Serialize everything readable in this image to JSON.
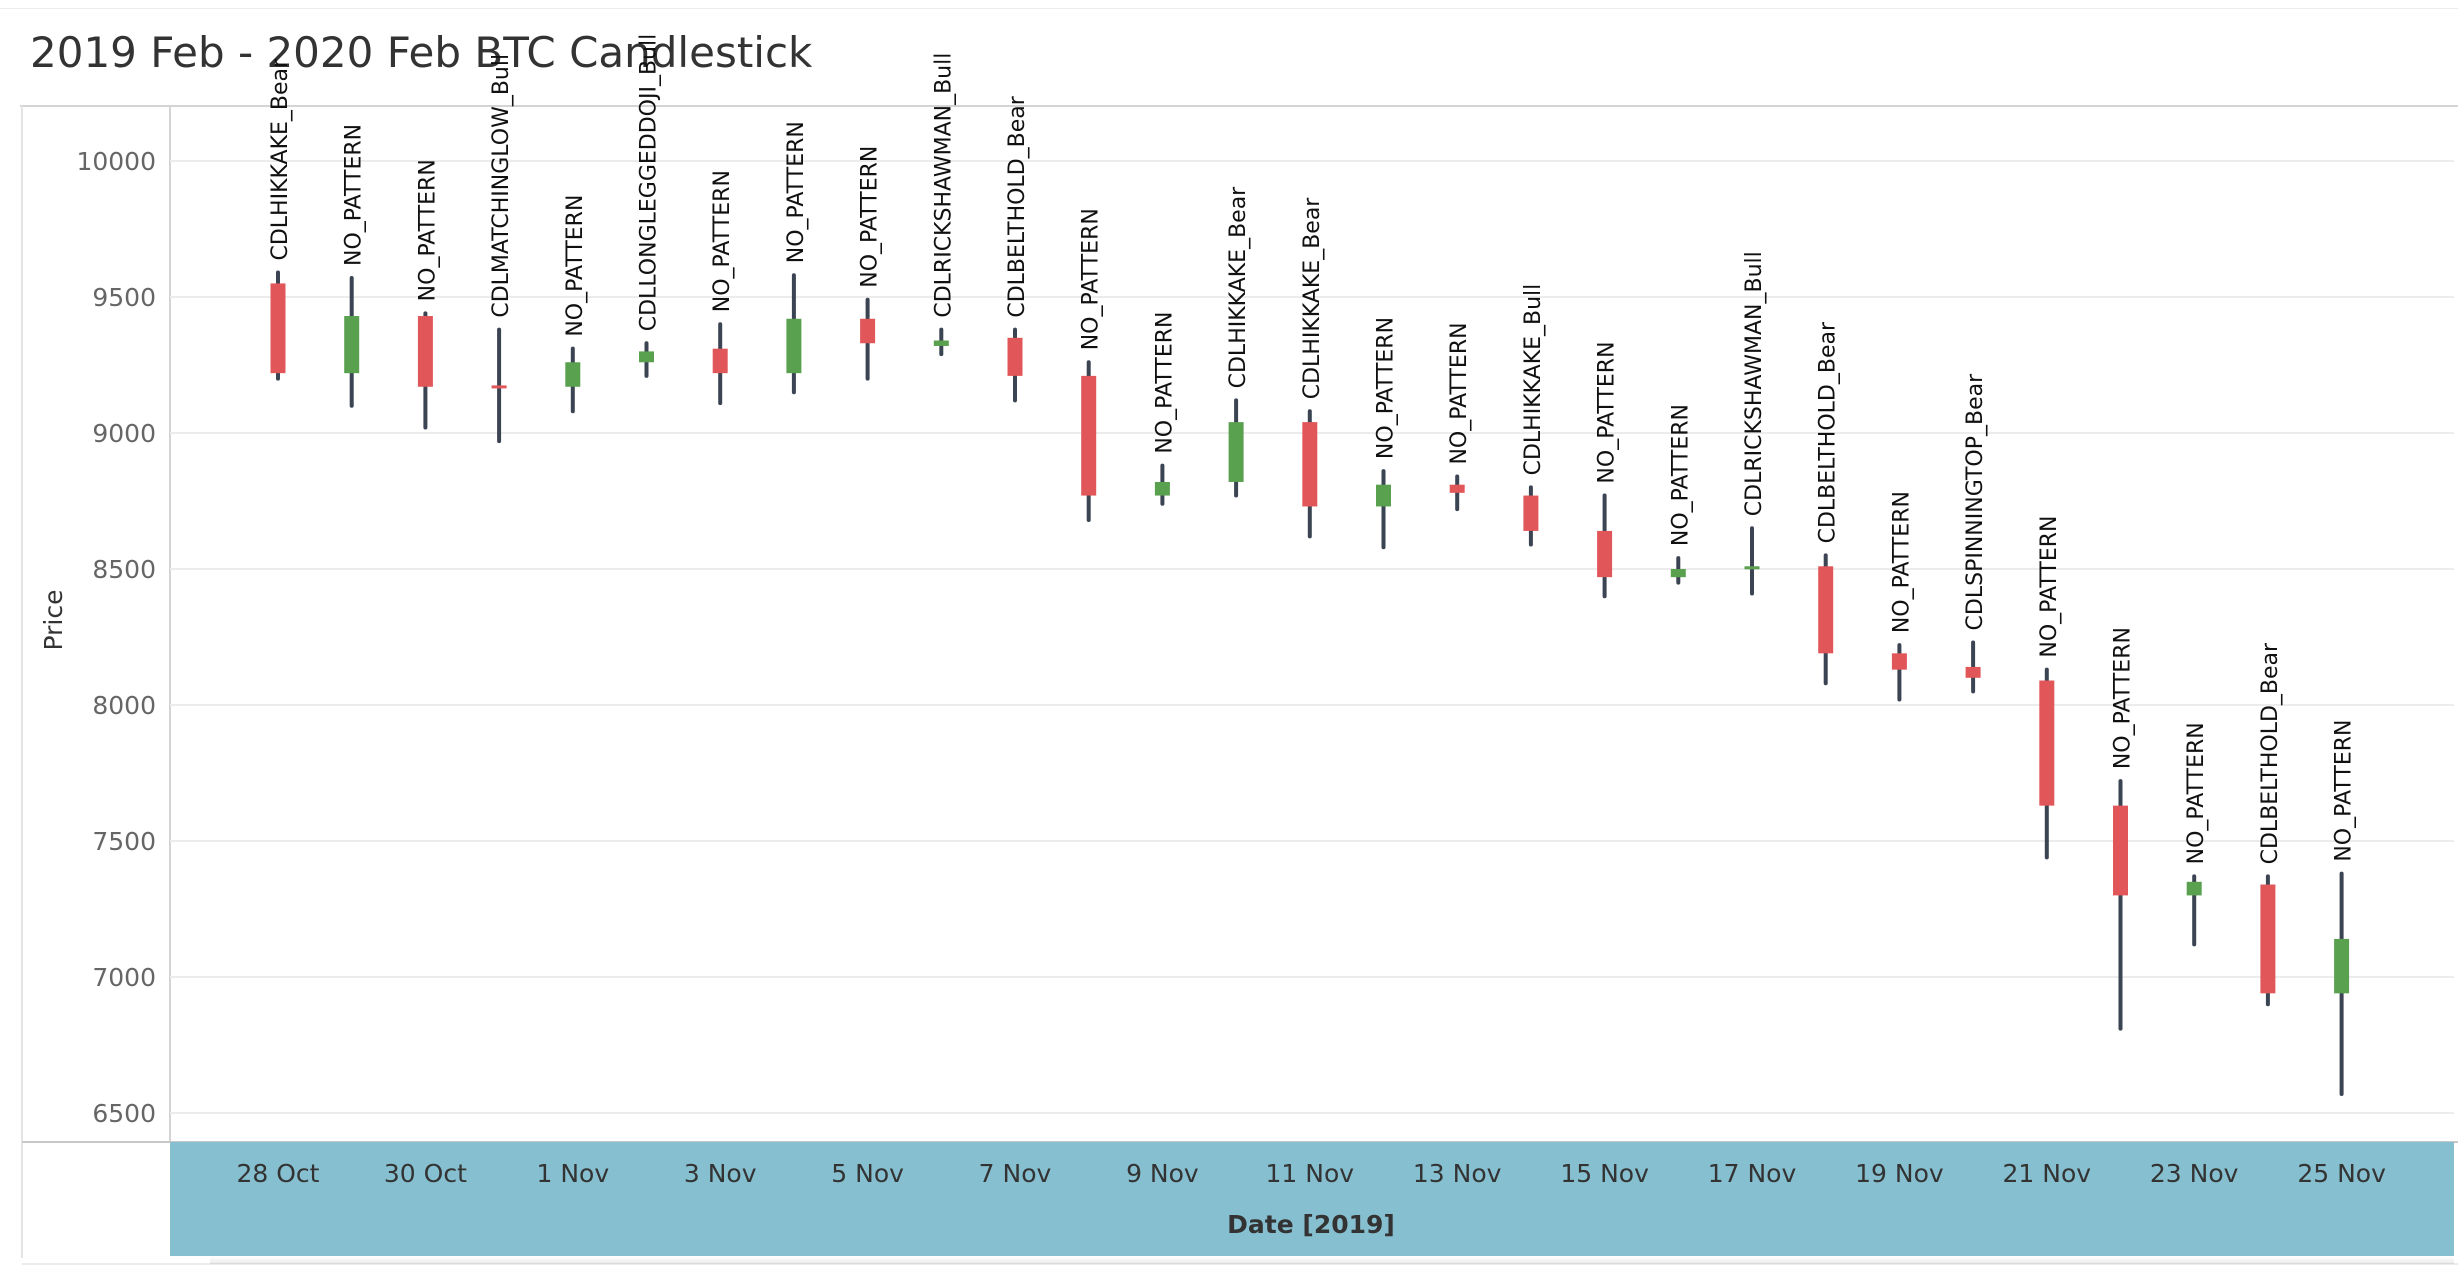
{
  "title": "2019 Feb - 2020 Feb BTC Candlestick",
  "colors": {
    "bear": "#e15759",
    "bull": "#59a14f",
    "wick": "#3b4452",
    "axis_band": "#86bfcf",
    "grid": "#ececec"
  },
  "chart_data": {
    "type": "candlestick",
    "title": "2019 Feb - 2020 Feb BTC Candlestick",
    "xlabel": "Date [2019]",
    "ylabel": "Price",
    "ylim": [
      6390,
      10200
    ],
    "y_ticks": [
      6500,
      7000,
      7500,
      8000,
      8500,
      9000,
      9500,
      10000
    ],
    "x_tick_labels": [
      "28 Oct",
      "30 Oct",
      "1 Nov",
      "3 Nov",
      "5 Nov",
      "7 Nov",
      "9 Nov",
      "11 Nov",
      "13 Nov",
      "15 Nov",
      "17 Nov",
      "19 Nov",
      "21 Nov",
      "23 Nov",
      "25 Nov"
    ],
    "grid": true,
    "candles": [
      {
        "date": "28 Oct",
        "open": 9550,
        "close": 9220,
        "high": 9590,
        "low": 9200,
        "pattern": "CDLHIKKAKE_Bear"
      },
      {
        "date": "29 Oct",
        "open": 9220,
        "close": 9430,
        "high": 9570,
        "low": 9100,
        "pattern": "NO_PATTERN"
      },
      {
        "date": "30 Oct",
        "open": 9430,
        "close": 9170,
        "high": 9440,
        "low": 9020,
        "pattern": "NO_PATTERN"
      },
      {
        "date": "31 Oct",
        "open": 9175,
        "close": 9165,
        "high": 9380,
        "low": 8970,
        "pattern": "CDLMATCHINGLOW_Bull"
      },
      {
        "date": "1 Nov",
        "open": 9170,
        "close": 9260,
        "high": 9310,
        "low": 9080,
        "pattern": "NO_PATTERN"
      },
      {
        "date": "2 Nov",
        "open": 9260,
        "close": 9300,
        "high": 9330,
        "low": 9210,
        "pattern": "CDLLONGLEGGEDDOJI_Bull"
      },
      {
        "date": "3 Nov",
        "open": 9310,
        "close": 9220,
        "high": 9400,
        "low": 9110,
        "pattern": "NO_PATTERN"
      },
      {
        "date": "4 Nov",
        "open": 9220,
        "close": 9420,
        "high": 9580,
        "low": 9150,
        "pattern": "NO_PATTERN"
      },
      {
        "date": "5 Nov",
        "open": 9420,
        "close": 9330,
        "high": 9490,
        "low": 9200,
        "pattern": "NO_PATTERN"
      },
      {
        "date": "6 Nov",
        "open": 9320,
        "close": 9340,
        "high": 9380,
        "low": 9290,
        "pattern": "CDLRICKSHAWMAN_Bull"
      },
      {
        "date": "7 Nov",
        "open": 9350,
        "close": 9210,
        "high": 9380,
        "low": 9120,
        "pattern": "CDLBELTHOLD_Bear"
      },
      {
        "date": "8 Nov",
        "open": 9210,
        "close": 8770,
        "high": 9260,
        "low": 8680,
        "pattern": "NO_PATTERN"
      },
      {
        "date": "9 Nov",
        "open": 8770,
        "close": 8820,
        "high": 8880,
        "low": 8740,
        "pattern": "NO_PATTERN"
      },
      {
        "date": "10 Nov",
        "open": 8820,
        "close": 9040,
        "high": 9120,
        "low": 8770,
        "pattern": "CDLHIKKAKE_Bear"
      },
      {
        "date": "11 Nov",
        "open": 9040,
        "close": 8730,
        "high": 9080,
        "low": 8620,
        "pattern": "CDLHIKKAKE_Bear"
      },
      {
        "date": "12 Nov",
        "open": 8730,
        "close": 8810,
        "high": 8860,
        "low": 8580,
        "pattern": "NO_PATTERN"
      },
      {
        "date": "13 Nov",
        "open": 8810,
        "close": 8780,
        "high": 8840,
        "low": 8720,
        "pattern": "NO_PATTERN"
      },
      {
        "date": "14 Nov",
        "open": 8770,
        "close": 8640,
        "high": 8800,
        "low": 8590,
        "pattern": "CDLHIKKAKE_Bull"
      },
      {
        "date": "15 Nov",
        "open": 8640,
        "close": 8470,
        "high": 8770,
        "low": 8400,
        "pattern": "NO_PATTERN"
      },
      {
        "date": "16 Nov",
        "open": 8470,
        "close": 8500,
        "high": 8540,
        "low": 8450,
        "pattern": "NO_PATTERN"
      },
      {
        "date": "17 Nov",
        "open": 8500,
        "close": 8510,
        "high": 8650,
        "low": 8410,
        "pattern": "CDLRICKSHAWMAN_Bull"
      },
      {
        "date": "18 Nov",
        "open": 8510,
        "close": 8190,
        "high": 8550,
        "low": 8080,
        "pattern": "CDLBELTHOLD_Bear"
      },
      {
        "date": "19 Nov",
        "open": 8190,
        "close": 8130,
        "high": 8220,
        "low": 8020,
        "pattern": "NO_PATTERN"
      },
      {
        "date": "20 Nov",
        "open": 8140,
        "close": 8100,
        "high": 8230,
        "low": 8050,
        "pattern": "CDLSPINNINGTOP_Bear"
      },
      {
        "date": "21 Nov",
        "open": 8090,
        "close": 7630,
        "high": 8130,
        "low": 7440,
        "pattern": "NO_PATTERN"
      },
      {
        "date": "22 Nov",
        "open": 7630,
        "close": 7300,
        "high": 7720,
        "low": 6810,
        "pattern": "NO_PATTERN"
      },
      {
        "date": "23 Nov",
        "open": 7300,
        "close": 7350,
        "high": 7370,
        "low": 7120,
        "pattern": "NO_PATTERN"
      },
      {
        "date": "24 Nov",
        "open": 7340,
        "close": 6940,
        "high": 7370,
        "low": 6900,
        "pattern": "CDLBELTHOLD_Bear"
      },
      {
        "date": "25 Nov",
        "open": 6940,
        "close": 7140,
        "high": 7380,
        "low": 6570,
        "pattern": "NO_PATTERN"
      }
    ]
  }
}
